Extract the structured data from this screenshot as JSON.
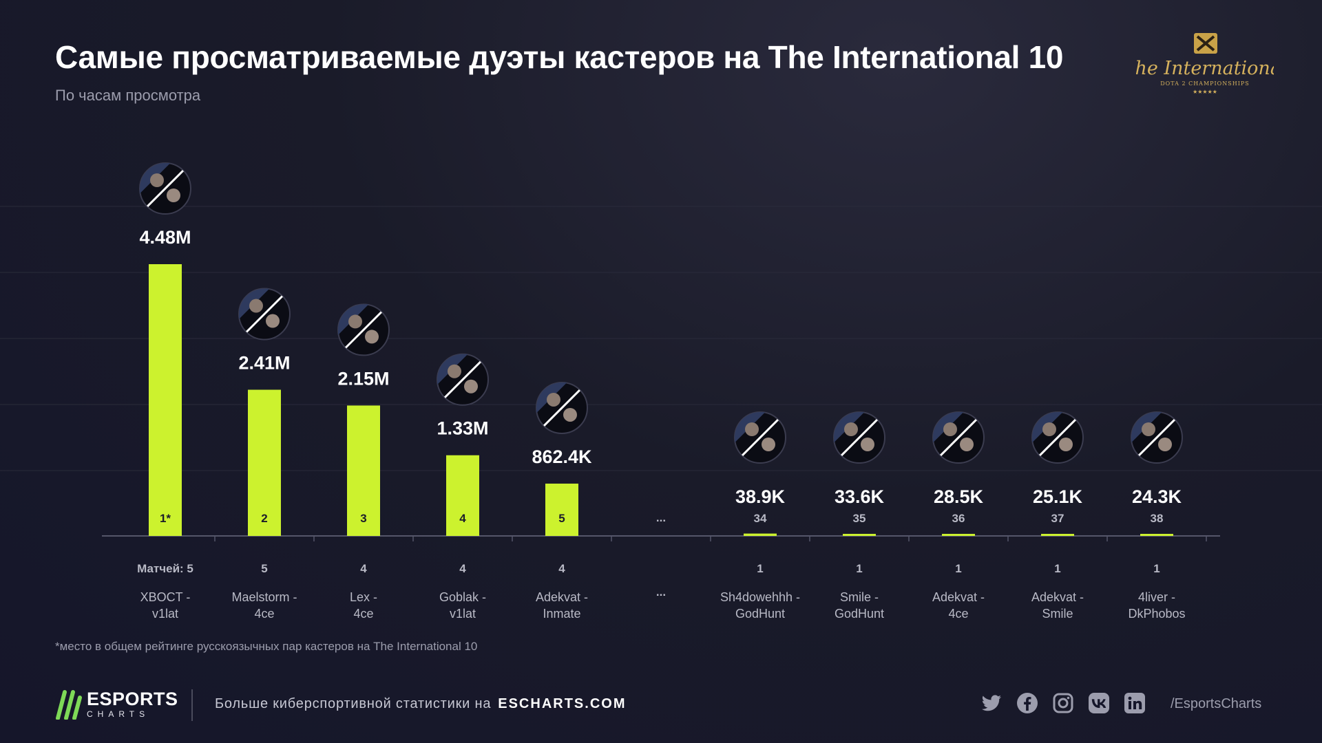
{
  "header": {
    "title": "Самые просматриваемые дуэты кастеров на The International 10",
    "subtitle": "По часам просмотра"
  },
  "brand_logo": {
    "script_text": "The International",
    "tag_text": "DOTA 2 CHAMPIONSHIPS"
  },
  "chart_data": {
    "type": "bar",
    "title": "Самые просматриваемые дуэты кастеров на The International 10",
    "subtitle": "По часам просмотра",
    "matches_label": "Матчей:",
    "gap_label": "...",
    "bars": [
      {
        "pair": [
          "XBOCT -",
          "v1lat"
        ],
        "value": 4480000,
        "value_label": "4.48M",
        "rank": "1*",
        "matches": 5
      },
      {
        "pair": [
          "Maelstorm -",
          "4ce"
        ],
        "value": 2410000,
        "value_label": "2.41M",
        "rank": "2",
        "matches": 5
      },
      {
        "pair": [
          "Lex -",
          "4ce"
        ],
        "value": 2150000,
        "value_label": "2.15M",
        "rank": "3",
        "matches": 4
      },
      {
        "pair": [
          "Goblak -",
          "v1lat"
        ],
        "value": 1330000,
        "value_label": "1.33M",
        "rank": "4",
        "matches": 4
      },
      {
        "pair": [
          "Adekvat -",
          "Inmate"
        ],
        "value": 862400,
        "value_label": "862.4K",
        "rank": "5",
        "matches": 4
      },
      {
        "pair": [
          "Sh4dowehhh -",
          "GodHunt"
        ],
        "value": 38900,
        "value_label": "38.9K",
        "rank": "34",
        "matches": 1
      },
      {
        "pair": [
          "Smile -",
          "GodHunt"
        ],
        "value": 33600,
        "value_label": "33.6K",
        "rank": "35",
        "matches": 1
      },
      {
        "pair": [
          "Adekvat -",
          "4ce"
        ],
        "value": 28500,
        "value_label": "28.5K",
        "rank": "36",
        "matches": 1
      },
      {
        "pair": [
          "Adekvat -",
          "Smile"
        ],
        "value": 25100,
        "value_label": "25.1K",
        "rank": "37",
        "matches": 1
      },
      {
        "pair": [
          "4liver -",
          "DkPhobos"
        ],
        "value": 24300,
        "value_label": "24.3K",
        "rank": "38",
        "matches": 1
      }
    ],
    "grid": true,
    "colors": {
      "bar": "#ccf22e",
      "rank_inside": "#1b1c2a",
      "rank_outside": "#b9bac6",
      "label": "#b9bac6",
      "grid": "#2a2b3b",
      "axis": "#55566a"
    }
  },
  "footnote": "*место в общем рейтинге русскоязычных пар кастеров на The International 10",
  "footer": {
    "brand_line1": "ESPORTS",
    "brand_line2": "CHARTS",
    "promo_text": "Больше киберспортивной статистики на",
    "promo_site": "ESCHARTS.COM",
    "socials": [
      "twitter-icon",
      "facebook-icon",
      "instagram-icon",
      "vk-icon",
      "linkedin-icon"
    ],
    "handle": "/EsportsCharts",
    "accent": "#7ed957"
  }
}
